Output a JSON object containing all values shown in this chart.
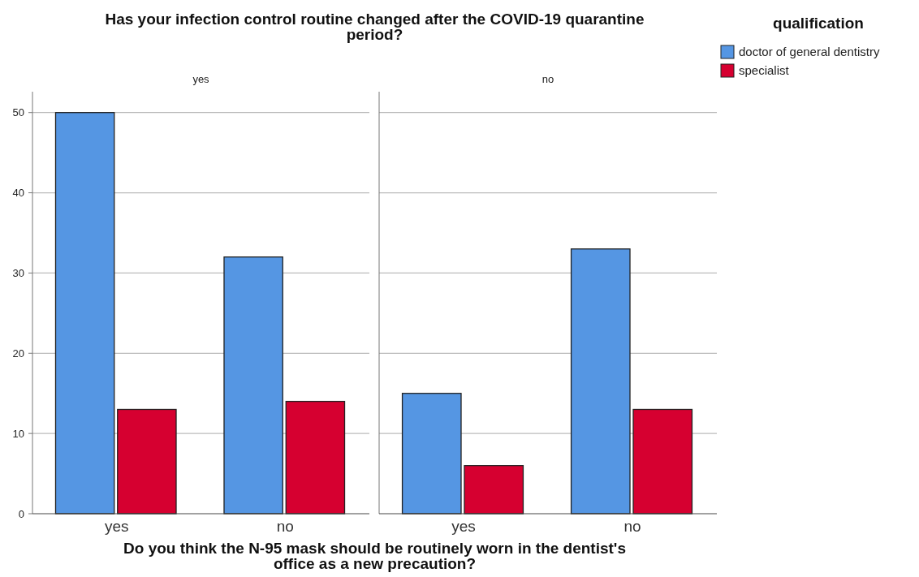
{
  "chart_data": [
    {
      "type": "bar",
      "title": "Has your infection control routine changed after the COVID-19 quarantine period?",
      "subtitle": "yes",
      "xlabel": "Do you think the N-95 mask should be routinely worn in the dentist's office as a new precaution?",
      "legend_title": "qualification",
      "legend": "right",
      "categories": [
        "yes",
        "no"
      ],
      "ylim": [
        0,
        52.6
      ],
      "yticks": [
        0,
        10,
        20,
        30,
        40,
        50
      ],
      "grid": "y",
      "series": [
        {
          "name": "doctor of general dentistry",
          "color": "#5596e3",
          "values": [
            50,
            32
          ]
        },
        {
          "name": "specialist",
          "color": "#d60030",
          "values": [
            13,
            14
          ]
        }
      ]
    },
    {
      "type": "bar",
      "subtitle": "no",
      "categories": [
        "yes",
        "no"
      ],
      "ylim": [
        0,
        52.6
      ],
      "yticks": [
        0,
        10,
        20,
        30,
        40,
        50
      ],
      "grid": "y",
      "tick_labels": "x",
      "series": [
        {
          "color": "#5596e3",
          "values": [
            15,
            33
          ]
        },
        {
          "color": "#d60030",
          "values": [
            6,
            13
          ]
        }
      ]
    }
  ]
}
